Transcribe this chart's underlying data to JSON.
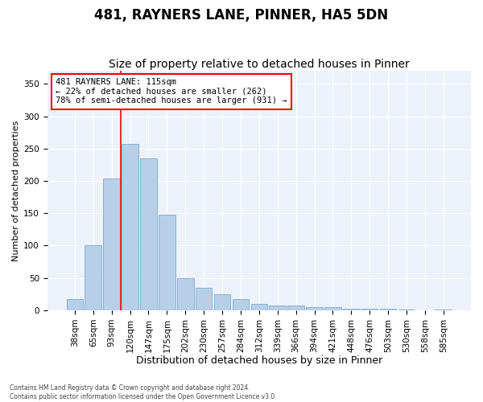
{
  "title": "481, RAYNERS LANE, PINNER, HA5 5DN",
  "subtitle": "Size of property relative to detached houses in Pinner",
  "xlabel": "Distribution of detached houses by size in Pinner",
  "ylabel": "Number of detached properties",
  "categories": [
    "38sqm",
    "65sqm",
    "93sqm",
    "120sqm",
    "147sqm",
    "175sqm",
    "202sqm",
    "230sqm",
    "257sqm",
    "284sqm",
    "312sqm",
    "339sqm",
    "366sqm",
    "394sqm",
    "421sqm",
    "448sqm",
    "476sqm",
    "503sqm",
    "530sqm",
    "558sqm",
    "585sqm"
  ],
  "values": [
    17,
    100,
    204,
    257,
    235,
    148,
    50,
    35,
    25,
    17,
    10,
    8,
    8,
    5,
    5,
    3,
    3,
    2,
    1,
    0,
    1
  ],
  "bar_color": "#b8cfe8",
  "bar_edge_color": "#7aaad0",
  "vline_color": "red",
  "vline_x": 2.5,
  "annotation_text": "481 RAYNERS LANE: 115sqm\n← 22% of detached houses are smaller (262)\n78% of semi-detached houses are larger (931) →",
  "ylim": [
    0,
    370
  ],
  "yticks": [
    0,
    50,
    100,
    150,
    200,
    250,
    300,
    350
  ],
  "bg_color": "#edf2fa",
  "footer": "Contains HM Land Registry data © Crown copyright and database right 2024.\nContains public sector information licensed under the Open Government Licence v3.0.",
  "title_fontsize": 12,
  "subtitle_fontsize": 10,
  "xlabel_fontsize": 9,
  "ylabel_fontsize": 8,
  "tick_fontsize": 7.5,
  "annot_fontsize": 7.5
}
